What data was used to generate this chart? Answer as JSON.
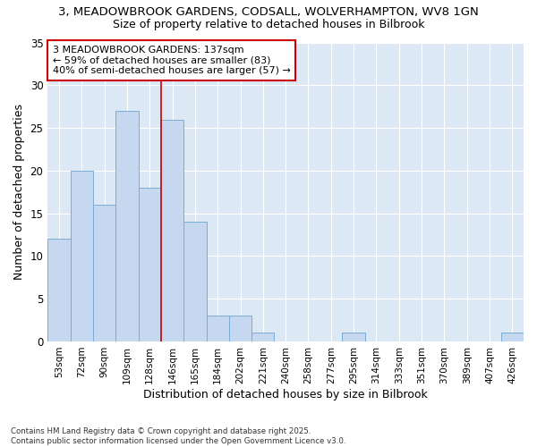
{
  "title_line1": "3, MEADOWBROOK GARDENS, CODSALL, WOLVERHAMPTON, WV8 1GN",
  "title_line2": "Size of property relative to detached houses in Bilbrook",
  "xlabel": "Distribution of detached houses by size in Bilbrook",
  "ylabel": "Number of detached properties",
  "categories": [
    "53sqm",
    "72sqm",
    "90sqm",
    "109sqm",
    "128sqm",
    "146sqm",
    "165sqm",
    "184sqm",
    "202sqm",
    "221sqm",
    "240sqm",
    "258sqm",
    "277sqm",
    "295sqm",
    "314sqm",
    "333sqm",
    "351sqm",
    "370sqm",
    "389sqm",
    "407sqm",
    "426sqm"
  ],
  "values": [
    12,
    20,
    16,
    27,
    18,
    26,
    14,
    3,
    3,
    1,
    0,
    0,
    0,
    1,
    0,
    0,
    0,
    0,
    0,
    0,
    1
  ],
  "bar_color": "#c5d8f0",
  "bar_edge_color": "#7aadd4",
  "background_color": "#ffffff",
  "plot_bg_color": "#dde8f5",
  "grid_color": "#ffffff",
  "red_line_index": 4.5,
  "annotation_text": "3 MEADOWBROOK GARDENS: 137sqm\n← 59% of detached houses are smaller (83)\n40% of semi-detached houses are larger (57) →",
  "annotation_box_color": "#ffffff",
  "annotation_box_edge": "#cc0000",
  "ylim": [
    0,
    35
  ],
  "yticks": [
    0,
    5,
    10,
    15,
    20,
    25,
    30,
    35
  ],
  "footer_line1": "Contains HM Land Registry data © Crown copyright and database right 2025.",
  "footer_line2": "Contains public sector information licensed under the Open Government Licence v3.0."
}
